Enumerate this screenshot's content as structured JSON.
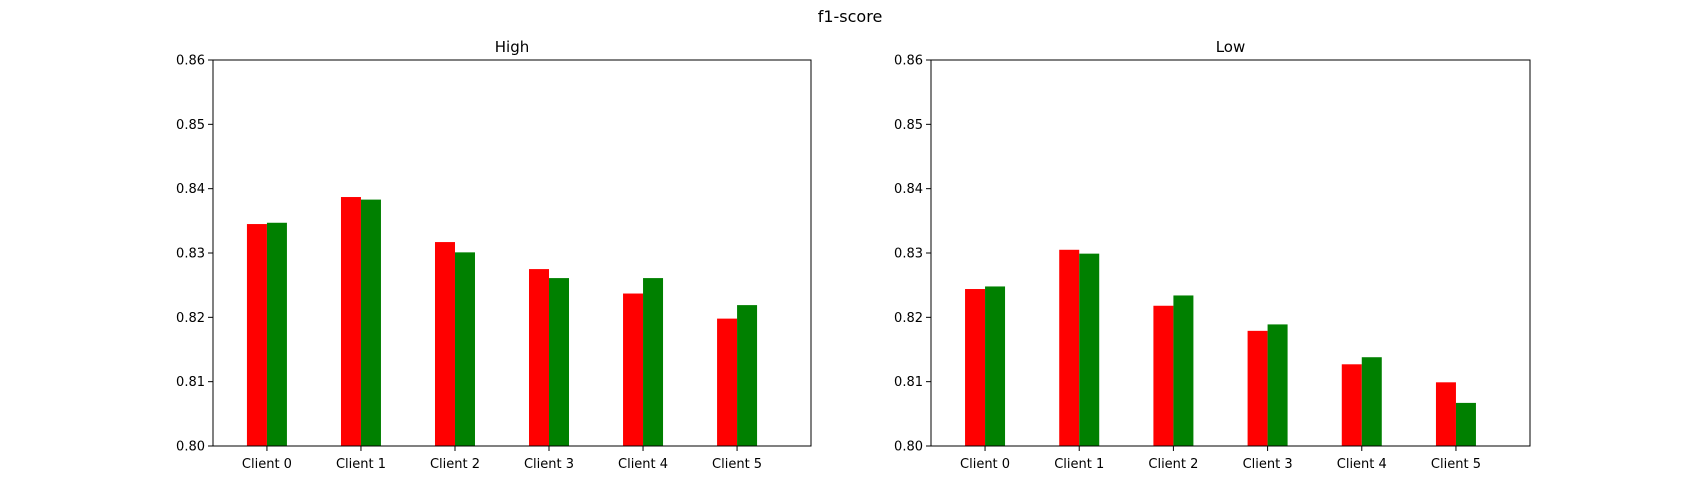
{
  "figure": {
    "title": "f1-score"
  },
  "colors": {
    "series_a": "#ff0000",
    "series_b": "#008000"
  },
  "chart_data": [
    {
      "type": "bar",
      "title": "High",
      "categories": [
        "Client 0",
        "Client 1",
        "Client 2",
        "Client 3",
        "Client 4",
        "Client 5"
      ],
      "series": [
        {
          "values": [
            0.8345,
            0.8387,
            0.8317,
            0.8275,
            0.8237,
            0.8198
          ]
        },
        {
          "values": [
            0.8347,
            0.8383,
            0.8301,
            0.8261,
            0.8261,
            0.8219
          ]
        }
      ],
      "ylim": [
        0.8,
        0.86
      ],
      "yticks": [
        "0.80",
        "0.81",
        "0.82",
        "0.83",
        "0.84",
        "0.85",
        "0.86"
      ],
      "grid": false,
      "legend": false
    },
    {
      "type": "bar",
      "title": "Low",
      "categories": [
        "Client 0",
        "Client 1",
        "Client 2",
        "Client 3",
        "Client 4",
        "Client 5"
      ],
      "series": [
        {
          "values": [
            0.8244,
            0.8305,
            0.8218,
            0.8179,
            0.8127,
            0.8099
          ]
        },
        {
          "values": [
            0.8248,
            0.8299,
            0.8234,
            0.8189,
            0.8138,
            0.8067
          ]
        }
      ],
      "ylim": [
        0.8,
        0.86
      ],
      "yticks": [
        "0.80",
        "0.81",
        "0.82",
        "0.83",
        "0.84",
        "0.85",
        "0.86"
      ],
      "grid": false,
      "legend": false
    }
  ]
}
